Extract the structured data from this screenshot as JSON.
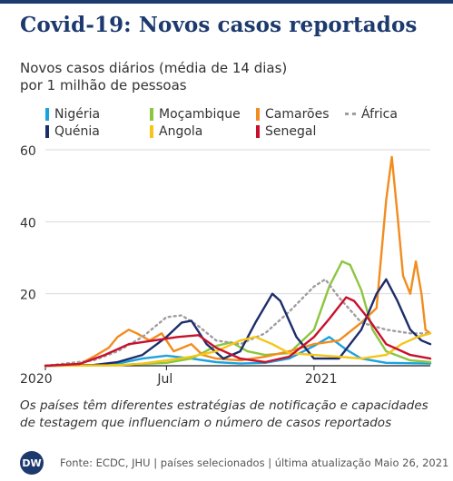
{
  "header": {
    "title": "Covid-19: Novos casos reportados",
    "subtitle_line1": "Novos casos diários (média de 14 dias)",
    "subtitle_line2": "por 1 milhão de pessoas"
  },
  "note": "Os países têm diferentes estratégias de notificação e capacidades de testagem que influenciam o número de casos reportados",
  "footer": {
    "logo": "DW",
    "source": "Fonte: ECDC, JHU | países selecionados | última atualização Maio 26, 2021"
  },
  "chart_data": {
    "type": "line",
    "ylim": [
      0,
      60
    ],
    "yticks": [
      "60",
      "40",
      "20"
    ],
    "xticks": [
      "2020",
      "Jul",
      "2021"
    ],
    "xlim": [
      "2020-02-01",
      "2021-05-26"
    ],
    "grid": true,
    "legend_position": "top",
    "series": [
      {
        "name": "Nigéria",
        "color": "#1aa3e0",
        "style": "solid",
        "points": [
          [
            "2020-02-01",
            0
          ],
          [
            "2020-04-01",
            0.1
          ],
          [
            "2020-05-01",
            0.6
          ],
          [
            "2020-06-01",
            2.0
          ],
          [
            "2020-07-01",
            2.8
          ],
          [
            "2020-08-01",
            2.0
          ],
          [
            "2020-09-01",
            1.0
          ],
          [
            "2020-10-01",
            0.6
          ],
          [
            "2020-11-01",
            0.8
          ],
          [
            "2020-12-01",
            2.0
          ],
          [
            "2021-01-01",
            5.5
          ],
          [
            "2021-01-20",
            8.0
          ],
          [
            "2021-02-10",
            4.5
          ],
          [
            "2021-03-01",
            2.0
          ],
          [
            "2021-04-01",
            0.8
          ],
          [
            "2021-05-26",
            0.6
          ]
        ]
      },
      {
        "name": "Moçambique",
        "color": "#8cc63f",
        "style": "solid",
        "points": [
          [
            "2020-02-01",
            0
          ],
          [
            "2020-05-01",
            0.2
          ],
          [
            "2020-07-01",
            0.8
          ],
          [
            "2020-08-01",
            2.0
          ],
          [
            "2020-09-01",
            5.5
          ],
          [
            "2020-09-20",
            6.5
          ],
          [
            "2020-10-10",
            4.0
          ],
          [
            "2020-11-01",
            3.0
          ],
          [
            "2020-12-01",
            3.5
          ],
          [
            "2021-01-01",
            10
          ],
          [
            "2021-01-20",
            22
          ],
          [
            "2021-02-05",
            29
          ],
          [
            "2021-02-15",
            28
          ],
          [
            "2021-03-01",
            21
          ],
          [
            "2021-03-15",
            10
          ],
          [
            "2021-04-01",
            4
          ],
          [
            "2021-05-01",
            1.5
          ],
          [
            "2021-05-26",
            1.0
          ]
        ]
      },
      {
        "name": "Camarões",
        "color": "#f28c1e",
        "style": "solid",
        "points": [
          [
            "2020-02-01",
            0
          ],
          [
            "2020-03-15",
            0.5
          ],
          [
            "2020-04-01",
            2.5
          ],
          [
            "2020-04-20",
            5.0
          ],
          [
            "2020-05-01",
            8.0
          ],
          [
            "2020-05-15",
            10
          ],
          [
            "2020-05-25",
            9
          ],
          [
            "2020-06-10",
            7
          ],
          [
            "2020-06-25",
            9
          ],
          [
            "2020-07-10",
            4
          ],
          [
            "2020-08-01",
            6
          ],
          [
            "2020-08-15",
            3
          ],
          [
            "2020-09-01",
            2
          ],
          [
            "2020-10-01",
            1.5
          ],
          [
            "2020-11-01",
            2.5
          ],
          [
            "2020-12-01",
            4
          ],
          [
            "2021-01-01",
            6
          ],
          [
            "2021-02-01",
            7
          ],
          [
            "2021-03-01",
            12
          ],
          [
            "2021-03-20",
            16
          ],
          [
            "2021-04-01",
            46
          ],
          [
            "2021-04-08",
            58
          ],
          [
            "2021-04-15",
            42
          ],
          [
            "2021-04-22",
            25
          ],
          [
            "2021-05-01",
            20
          ],
          [
            "2021-05-08",
            29
          ],
          [
            "2021-05-15",
            20
          ],
          [
            "2021-05-20",
            10
          ],
          [
            "2021-05-26",
            9
          ]
        ]
      },
      {
        "name": "África",
        "color": "#9e9e9e",
        "style": "dotted",
        "points": [
          [
            "2020-02-01",
            0
          ],
          [
            "2020-04-01",
            1.5
          ],
          [
            "2020-05-01",
            4
          ],
          [
            "2020-06-01",
            8
          ],
          [
            "2020-07-01",
            13.5
          ],
          [
            "2020-07-20",
            14
          ],
          [
            "2020-08-10",
            11
          ],
          [
            "2020-09-01",
            7
          ],
          [
            "2020-10-01",
            6
          ],
          [
            "2020-11-01",
            9
          ],
          [
            "2020-12-01",
            15
          ],
          [
            "2021-01-01",
            22
          ],
          [
            "2021-01-15",
            24
          ],
          [
            "2021-02-01",
            19
          ],
          [
            "2021-03-01",
            12
          ],
          [
            "2021-04-01",
            10
          ],
          [
            "2021-05-01",
            9
          ],
          [
            "2021-05-26",
            9
          ]
        ]
      },
      {
        "name": "Quénia",
        "color": "#1d2d6b",
        "style": "solid",
        "points": [
          [
            "2020-02-01",
            0
          ],
          [
            "2020-04-01",
            0.2
          ],
          [
            "2020-05-01",
            1
          ],
          [
            "2020-06-01",
            3
          ],
          [
            "2020-07-01",
            8
          ],
          [
            "2020-07-20",
            12
          ],
          [
            "2020-08-01",
            12.5
          ],
          [
            "2020-08-20",
            6
          ],
          [
            "2020-09-10",
            2
          ],
          [
            "2020-10-01",
            4
          ],
          [
            "2020-10-20",
            12
          ],
          [
            "2020-11-10",
            20
          ],
          [
            "2020-11-20",
            18
          ],
          [
            "2020-12-10",
            8
          ],
          [
            "2021-01-01",
            2
          ],
          [
            "2021-02-01",
            2
          ],
          [
            "2021-03-01",
            10
          ],
          [
            "2021-03-20",
            20
          ],
          [
            "2021-04-01",
            24
          ],
          [
            "2021-04-15",
            18
          ],
          [
            "2021-05-01",
            10
          ],
          [
            "2021-05-15",
            7
          ],
          [
            "2021-05-26",
            6
          ]
        ]
      },
      {
        "name": "Angola",
        "color": "#f5c518",
        "style": "solid",
        "points": [
          [
            "2020-02-01",
            0
          ],
          [
            "2020-05-01",
            0.1
          ],
          [
            "2020-06-01",
            0.6
          ],
          [
            "2020-07-01",
            1.5
          ],
          [
            "2020-08-01",
            2.5
          ],
          [
            "2020-09-01",
            4
          ],
          [
            "2020-10-01",
            7
          ],
          [
            "2020-10-20",
            8
          ],
          [
            "2020-11-10",
            6
          ],
          [
            "2020-12-01",
            3.5
          ],
          [
            "2021-01-01",
            3
          ],
          [
            "2021-02-01",
            2.5
          ],
          [
            "2021-03-01",
            2
          ],
          [
            "2021-04-01",
            3
          ],
          [
            "2021-04-20",
            6
          ],
          [
            "2021-05-10",
            8
          ],
          [
            "2021-05-26",
            9
          ]
        ]
      },
      {
        "name": "Senegal",
        "color": "#c8102e",
        "style": "solid",
        "points": [
          [
            "2020-02-01",
            0
          ],
          [
            "2020-03-15",
            0.5
          ],
          [
            "2020-04-15",
            3
          ],
          [
            "2020-05-15",
            6
          ],
          [
            "2020-06-15",
            7
          ],
          [
            "2020-07-15",
            8
          ],
          [
            "2020-08-10",
            8.5
          ],
          [
            "2020-09-01",
            5
          ],
          [
            "2020-10-01",
            2
          ],
          [
            "2020-11-01",
            1
          ],
          [
            "2020-12-01",
            2.5
          ],
          [
            "2021-01-01",
            8
          ],
          [
            "2021-01-20",
            13
          ],
          [
            "2021-02-10",
            19
          ],
          [
            "2021-02-20",
            18
          ],
          [
            "2021-03-10",
            13
          ],
          [
            "2021-04-01",
            6
          ],
          [
            "2021-05-01",
            3
          ],
          [
            "2021-05-26",
            2
          ]
        ]
      }
    ]
  }
}
